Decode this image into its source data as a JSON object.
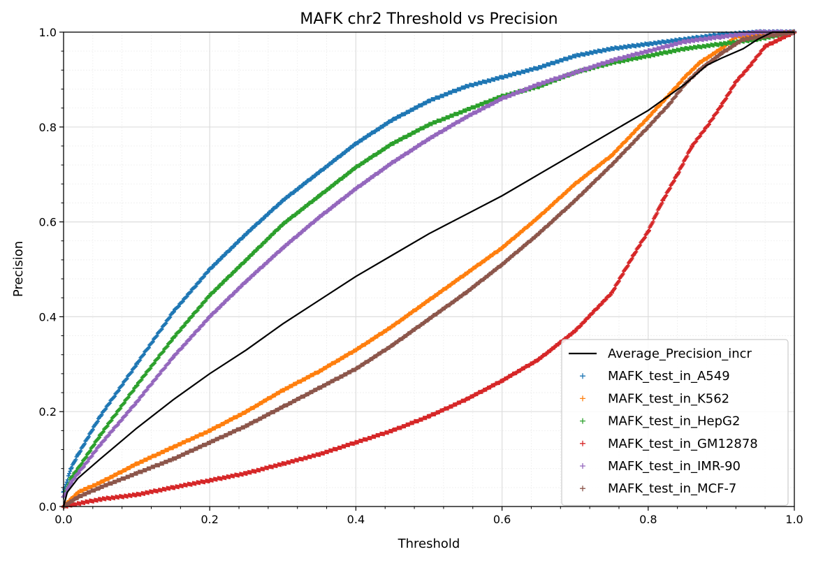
{
  "chart_data": {
    "type": "scatter",
    "title": "MAFK chr2 Threshold vs Precision",
    "xlabel": "Threshold",
    "ylabel": "Precision",
    "xlim": [
      0,
      1
    ],
    "ylim": [
      0,
      1
    ],
    "xticks": [
      0.0,
      0.2,
      0.4,
      0.6,
      0.8,
      1.0
    ],
    "yticks": [
      0.0,
      0.2,
      0.4,
      0.6,
      0.8,
      1.0
    ],
    "xtick_labels": [
      "0.0",
      "0.2",
      "0.4",
      "0.6",
      "0.8",
      "1.0"
    ],
    "ytick_labels": [
      "0.0",
      "0.2",
      "0.4",
      "0.6",
      "0.8",
      "1.0"
    ],
    "grid": true,
    "legend_position": "lower-right",
    "series": [
      {
        "name": "Average_Precision_incr",
        "kind": "line",
        "color": "#000000",
        "points": [
          [
            0.0,
            0.0
          ],
          [
            0.005,
            0.03
          ],
          [
            0.02,
            0.06
          ],
          [
            0.05,
            0.1
          ],
          [
            0.1,
            0.165
          ],
          [
            0.15,
            0.225
          ],
          [
            0.2,
            0.28
          ],
          [
            0.25,
            0.33
          ],
          [
            0.3,
            0.385
          ],
          [
            0.35,
            0.435
          ],
          [
            0.4,
            0.485
          ],
          [
            0.45,
            0.53
          ],
          [
            0.5,
            0.575
          ],
          [
            0.55,
            0.615
          ],
          [
            0.6,
            0.655
          ],
          [
            0.65,
            0.7
          ],
          [
            0.7,
            0.745
          ],
          [
            0.75,
            0.79
          ],
          [
            0.8,
            0.835
          ],
          [
            0.85,
            0.89
          ],
          [
            0.88,
            0.93
          ],
          [
            0.9,
            0.945
          ],
          [
            0.93,
            0.965
          ],
          [
            0.95,
            0.985
          ],
          [
            0.97,
            1.0
          ],
          [
            1.0,
            1.0
          ]
        ]
      },
      {
        "name": "MAFK_test_in_A549",
        "kind": "scatter",
        "color": "#1f77b4",
        "points": [
          [
            0.0,
            0.03
          ],
          [
            0.01,
            0.08
          ],
          [
            0.02,
            0.11
          ],
          [
            0.05,
            0.19
          ],
          [
            0.1,
            0.3
          ],
          [
            0.15,
            0.41
          ],
          [
            0.2,
            0.5
          ],
          [
            0.25,
            0.575
          ],
          [
            0.3,
            0.645
          ],
          [
            0.35,
            0.705
          ],
          [
            0.4,
            0.765
          ],
          [
            0.45,
            0.815
          ],
          [
            0.5,
            0.855
          ],
          [
            0.55,
            0.885
          ],
          [
            0.6,
            0.905
          ],
          [
            0.65,
            0.925
          ],
          [
            0.7,
            0.95
          ],
          [
            0.75,
            0.965
          ],
          [
            0.8,
            0.975
          ],
          [
            0.85,
            0.985
          ],
          [
            0.9,
            0.995
          ],
          [
            0.95,
            1.0
          ],
          [
            1.0,
            1.0
          ]
        ]
      },
      {
        "name": "MAFK_test_in_K562",
        "kind": "scatter",
        "color": "#ff7f0e",
        "points": [
          [
            0.0,
            0.0
          ],
          [
            0.02,
            0.03
          ],
          [
            0.05,
            0.05
          ],
          [
            0.1,
            0.09
          ],
          [
            0.15,
            0.125
          ],
          [
            0.2,
            0.16
          ],
          [
            0.25,
            0.2
          ],
          [
            0.3,
            0.245
          ],
          [
            0.35,
            0.285
          ],
          [
            0.4,
            0.33
          ],
          [
            0.45,
            0.38
          ],
          [
            0.5,
            0.435
          ],
          [
            0.55,
            0.49
          ],
          [
            0.6,
            0.545
          ],
          [
            0.65,
            0.61
          ],
          [
            0.7,
            0.68
          ],
          [
            0.75,
            0.74
          ],
          [
            0.8,
            0.82
          ],
          [
            0.83,
            0.87
          ],
          [
            0.85,
            0.905
          ],
          [
            0.87,
            0.935
          ],
          [
            0.9,
            0.965
          ],
          [
            0.92,
            0.99
          ],
          [
            1.0,
            1.0
          ]
        ]
      },
      {
        "name": "MAFK_test_in_HepG2",
        "kind": "scatter",
        "color": "#2ca02c",
        "points": [
          [
            0.0,
            0.02
          ],
          [
            0.01,
            0.06
          ],
          [
            0.02,
            0.08
          ],
          [
            0.05,
            0.15
          ],
          [
            0.1,
            0.255
          ],
          [
            0.15,
            0.355
          ],
          [
            0.2,
            0.445
          ],
          [
            0.25,
            0.52
          ],
          [
            0.3,
            0.595
          ],
          [
            0.35,
            0.655
          ],
          [
            0.4,
            0.715
          ],
          [
            0.45,
            0.765
          ],
          [
            0.5,
            0.805
          ],
          [
            0.55,
            0.835
          ],
          [
            0.6,
            0.865
          ],
          [
            0.65,
            0.885
          ],
          [
            0.7,
            0.915
          ],
          [
            0.75,
            0.935
          ],
          [
            0.8,
            0.95
          ],
          [
            0.85,
            0.965
          ],
          [
            0.9,
            0.975
          ],
          [
            0.95,
            0.985
          ],
          [
            1.0,
            1.0
          ]
        ]
      },
      {
        "name": "MAFK_test_in_GM12878",
        "kind": "scatter",
        "color": "#d62728",
        "points": [
          [
            0.0,
            0.0
          ],
          [
            0.05,
            0.015
          ],
          [
            0.1,
            0.025
          ],
          [
            0.15,
            0.04
          ],
          [
            0.2,
            0.055
          ],
          [
            0.25,
            0.07
          ],
          [
            0.3,
            0.09
          ],
          [
            0.35,
            0.11
          ],
          [
            0.4,
            0.135
          ],
          [
            0.45,
            0.16
          ],
          [
            0.5,
            0.19
          ],
          [
            0.55,
            0.225
          ],
          [
            0.6,
            0.265
          ],
          [
            0.65,
            0.31
          ],
          [
            0.7,
            0.37
          ],
          [
            0.75,
            0.45
          ],
          [
            0.78,
            0.53
          ],
          [
            0.8,
            0.58
          ],
          [
            0.82,
            0.645
          ],
          [
            0.84,
            0.7
          ],
          [
            0.86,
            0.76
          ],
          [
            0.88,
            0.8
          ],
          [
            0.9,
            0.845
          ],
          [
            0.92,
            0.895
          ],
          [
            0.94,
            0.93
          ],
          [
            0.96,
            0.97
          ],
          [
            1.0,
            1.0
          ]
        ]
      },
      {
        "name": "MAFK_test_in_IMR-90",
        "kind": "scatter",
        "color": "#9467bd",
        "points": [
          [
            0.0,
            0.02
          ],
          [
            0.01,
            0.05
          ],
          [
            0.02,
            0.07
          ],
          [
            0.05,
            0.13
          ],
          [
            0.1,
            0.22
          ],
          [
            0.15,
            0.315
          ],
          [
            0.2,
            0.4
          ],
          [
            0.25,
            0.475
          ],
          [
            0.3,
            0.545
          ],
          [
            0.35,
            0.61
          ],
          [
            0.4,
            0.67
          ],
          [
            0.45,
            0.725
          ],
          [
            0.5,
            0.775
          ],
          [
            0.55,
            0.82
          ],
          [
            0.6,
            0.86
          ],
          [
            0.65,
            0.89
          ],
          [
            0.7,
            0.915
          ],
          [
            0.75,
            0.94
          ],
          [
            0.8,
            0.96
          ],
          [
            0.85,
            0.98
          ],
          [
            0.9,
            0.99
          ],
          [
            0.95,
            1.0
          ],
          [
            1.0,
            1.0
          ]
        ]
      },
      {
        "name": "MAFK_test_in_MCF-7",
        "kind": "scatter",
        "color": "#8c564b",
        "points": [
          [
            0.0,
            0.0
          ],
          [
            0.02,
            0.02
          ],
          [
            0.05,
            0.04
          ],
          [
            0.1,
            0.07
          ],
          [
            0.15,
            0.1
          ],
          [
            0.2,
            0.135
          ],
          [
            0.25,
            0.17
          ],
          [
            0.3,
            0.21
          ],
          [
            0.35,
            0.25
          ],
          [
            0.4,
            0.29
          ],
          [
            0.45,
            0.34
          ],
          [
            0.5,
            0.395
          ],
          [
            0.55,
            0.45
          ],
          [
            0.6,
            0.51
          ],
          [
            0.65,
            0.575
          ],
          [
            0.7,
            0.645
          ],
          [
            0.75,
            0.72
          ],
          [
            0.8,
            0.8
          ],
          [
            0.83,
            0.85
          ],
          [
            0.85,
            0.89
          ],
          [
            0.87,
            0.92
          ],
          [
            0.9,
            0.955
          ],
          [
            0.93,
            0.985
          ],
          [
            1.0,
            1.0
          ]
        ]
      }
    ]
  }
}
